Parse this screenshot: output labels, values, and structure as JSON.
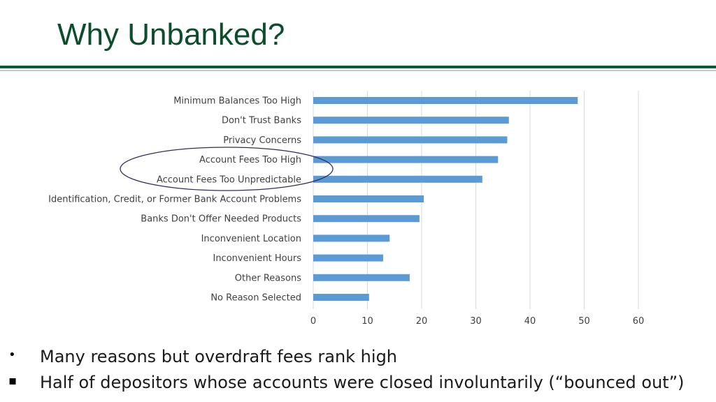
{
  "slide": {
    "title": "Why Unbanked?",
    "accent_color": "#0f5a34",
    "title_color": "#0b4d2c"
  },
  "chart_data": {
    "type": "bar",
    "orientation": "horizontal",
    "categories": [
      "Minimum Balances Too High",
      "Don't Trust Banks",
      "Privacy Concerns",
      "Account Fees Too High",
      "Account Fees Too Unpredictable",
      "Identification, Credit, or Former Bank Account Problems",
      "Banks Don't Offer Needed Products",
      "Inconvenient Location",
      "Inconvenient Hours",
      "Other Reasons",
      "No Reason Selected"
    ],
    "values": [
      48.8,
      36.1,
      35.8,
      34.1,
      31.2,
      20.4,
      19.6,
      14.1,
      12.9,
      17.8,
      10.3
    ],
    "xlim": [
      0,
      60
    ],
    "xticks": [
      "0",
      "10",
      "20",
      "30",
      "40",
      "50",
      "60"
    ],
    "grid": "vertical",
    "bar_color": "#5b9bd5",
    "annotation": "ellipse highlighting Account Fees Too High and Account Fees Too Unpredictable",
    "annotation_color": "#2e2e5c"
  },
  "bullets": [
    {
      "mark": "•",
      "text": "Many reasons but overdraft fees rank high"
    },
    {
      "mark": "▪",
      "text": "Half of depositors whose accounts were closed involuntarily (“bounced out”)"
    }
  ]
}
